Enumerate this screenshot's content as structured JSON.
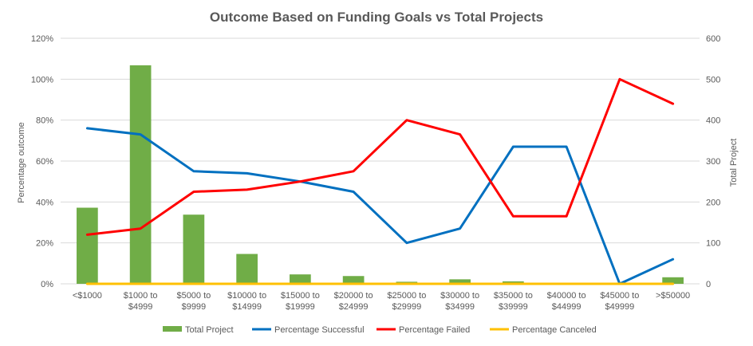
{
  "chart_data": {
    "type": "bar+line",
    "title": "Outcome Based on Funding Goals vs Total Projects",
    "ylabel_left": "Percentage outcome",
    "ylabel_right": "Total Project",
    "ylim_left": [
      0,
      1.2
    ],
    "ylim_right": [
      0,
      600
    ],
    "yticks_left": [
      "0%",
      "20%",
      "40%",
      "60%",
      "80%",
      "100%",
      "120%"
    ],
    "yticks_right": [
      "0",
      "100",
      "200",
      "300",
      "400",
      "500",
      "600"
    ],
    "grid": true,
    "legend_position": "bottom",
    "categories": [
      [
        "<$1000"
      ],
      [
        "$1000 to",
        "$4999"
      ],
      [
        "$5000 to",
        "$9999"
      ],
      [
        "$10000 to",
        "$14999"
      ],
      [
        "$15000 to",
        "$19999"
      ],
      [
        "$20000 to",
        "$24999"
      ],
      [
        "$25000 to",
        "$29999"
      ],
      [
        "$30000 to",
        "$34999"
      ],
      [
        "$35000 to",
        "$39999"
      ],
      [
        "$40000 to",
        "$44999"
      ],
      [
        "$45000 to",
        "$49999"
      ],
      [
        ">$50000"
      ]
    ],
    "series": [
      {
        "name": "Total Project",
        "type": "bar",
        "axis": "right",
        "color": "#70ad47",
        "values": [
          186,
          534,
          169,
          73,
          23,
          19,
          5,
          11,
          6,
          0,
          0,
          16
        ]
      },
      {
        "name": "Percentage Successful",
        "type": "line",
        "axis": "left",
        "color": "#0070c0",
        "values": [
          0.76,
          0.73,
          0.55,
          0.54,
          0.5,
          0.45,
          0.2,
          0.27,
          0.67,
          0.67,
          0.0,
          0.12
        ]
      },
      {
        "name": "Percentage Failed",
        "type": "line",
        "axis": "left",
        "color": "#ff0000",
        "values": [
          0.24,
          0.27,
          0.45,
          0.46,
          0.5,
          0.55,
          0.8,
          0.73,
          0.33,
          0.33,
          1.0,
          0.88
        ]
      },
      {
        "name": "Percentage Canceled",
        "type": "line",
        "axis": "left",
        "color": "#ffc000",
        "values": [
          0,
          0,
          0,
          0,
          0,
          0,
          0,
          0,
          0,
          0,
          0,
          0
        ]
      }
    ]
  }
}
